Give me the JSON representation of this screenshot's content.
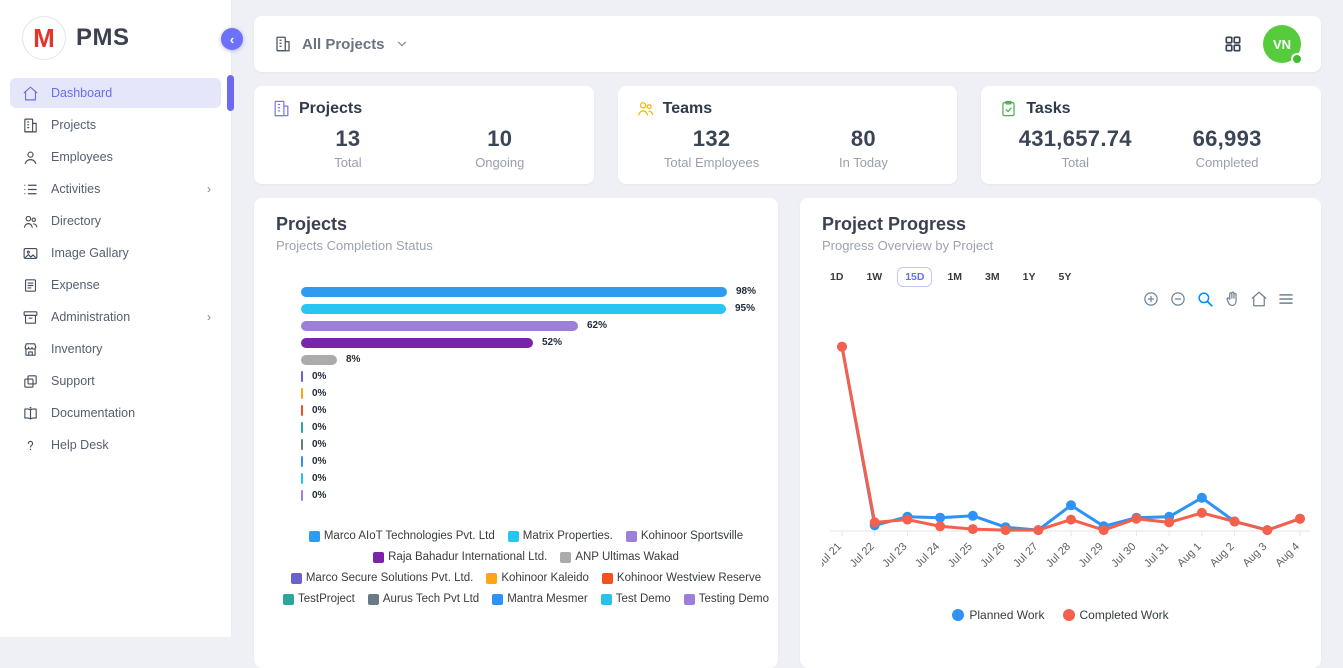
{
  "app": {
    "name": "PMS",
    "logo_letter": "M"
  },
  "sidebar": {
    "items": [
      {
        "label": "Dashboard",
        "icon": "home-icon",
        "active": true,
        "expandable": false
      },
      {
        "label": "Projects",
        "icon": "building-icon",
        "active": false,
        "expandable": false
      },
      {
        "label": "Employees",
        "icon": "person-icon",
        "active": false,
        "expandable": false
      },
      {
        "label": "Activities",
        "icon": "list-icon",
        "active": false,
        "expandable": true
      },
      {
        "label": "Directory",
        "icon": "people-icon",
        "active": false,
        "expandable": false
      },
      {
        "label": "Image Gallary",
        "icon": "image-icon",
        "active": false,
        "expandable": false
      },
      {
        "label": "Expense",
        "icon": "receipt-icon",
        "active": false,
        "expandable": false
      },
      {
        "label": "Administration",
        "icon": "archive-icon",
        "active": false,
        "expandable": true
      },
      {
        "label": "Inventory",
        "icon": "store-icon",
        "active": false,
        "expandable": false
      },
      {
        "label": "Support",
        "icon": "copy-icon",
        "active": false,
        "expandable": false
      },
      {
        "label": "Documentation",
        "icon": "book-icon",
        "active": false,
        "expandable": false
      },
      {
        "label": "Help Desk",
        "icon": "question-icon",
        "active": false,
        "expandable": false
      }
    ]
  },
  "header": {
    "project_filter_label": "All Projects",
    "avatar_initials": "VN",
    "avatar_color": "#56cb3c"
  },
  "stats": [
    {
      "title": "Projects",
      "icon": "building-icon",
      "icon_color": "#7b7be8",
      "metrics": [
        {
          "value": "13",
          "label": "Total"
        },
        {
          "value": "10",
          "label": "Ongoing"
        }
      ]
    },
    {
      "title": "Teams",
      "icon": "people-icon",
      "icon_color": "#ffb300",
      "metrics": [
        {
          "value": "132",
          "label": "Total Employees"
        },
        {
          "value": "80",
          "label": "In Today"
        }
      ]
    },
    {
      "title": "Tasks",
      "icon": "task-icon",
      "icon_color": "#4caf50",
      "metrics": [
        {
          "value": "431,657.74",
          "label": "Total"
        },
        {
          "value": "66,993",
          "label": "Completed"
        }
      ]
    }
  ],
  "projects_panel": {
    "title": "Projects",
    "subtitle": "Projects Completion Status"
  },
  "progress_panel": {
    "title": "Project Progress",
    "subtitle": "Progress Overview by Project",
    "ranges": [
      "1D",
      "1W",
      "15D",
      "1M",
      "3M",
      "1Y",
      "5Y"
    ],
    "active_range": "15D",
    "toolbar_icons": [
      "zoom-in-icon",
      "zoom-out-icon",
      "selection-zoom-icon",
      "pan-icon",
      "home-icon",
      "menu-icon"
    ],
    "toolbar_active_icon": "selection-zoom-icon"
  },
  "chart_data": [
    {
      "type": "bar",
      "orientation": "horizontal",
      "title": "Projects",
      "subtitle": "Projects Completion Status",
      "unit": "%",
      "xlim": [
        0,
        100
      ],
      "items": [
        {
          "name": "Marco AIoT Technologies Pvt. Ltd",
          "value": 98,
          "label": "98%",
          "color": "#2e9bf0"
        },
        {
          "name": "Matrix Properties.",
          "value": 95,
          "label": "95%",
          "color": "#29c5f2"
        },
        {
          "name": "Kohinoor Sportsville",
          "value": 62,
          "label": "62%",
          "color": "#9c7fd9"
        },
        {
          "name": "Raja Bahadur International Ltd.",
          "value": 52,
          "label": "52%",
          "color": "#7b24a8"
        },
        {
          "name": "ANP Ultimas Wakad",
          "value": 8,
          "label": "8%",
          "color": "#ababab"
        },
        {
          "name": "Marco Secure Solutions Pvt. Ltd.",
          "value": 0,
          "label": "0%",
          "color": "#6a62cf"
        },
        {
          "name": "Kohinoor Kaleido",
          "value": 0,
          "label": "0%",
          "color": "#ffa412"
        },
        {
          "name": "Kohinoor Westview Reserve",
          "value": 0,
          "label": "0%",
          "color": "#f4511e"
        },
        {
          "name": "TestProject",
          "value": 0,
          "label": "0%",
          "color": "#2aa79b"
        },
        {
          "name": "Aurus Tech Pvt Ltd",
          "value": 0,
          "label": "0%",
          "color": "#697a84"
        },
        {
          "name": "Mantra Mesmer",
          "value": 0,
          "label": "0%",
          "color": "#2e93f5"
        },
        {
          "name": "Test Demo",
          "value": 0,
          "label": "0%",
          "color": "#25c2ed"
        },
        {
          "name": "Testing Demo",
          "value": 0,
          "label": "0%",
          "color": "#9c7fd9"
        }
      ],
      "legend_position": "bottom"
    },
    {
      "type": "line",
      "title": "Project Progress",
      "subtitle": "Progress Overview by Project",
      "x": [
        "Jul 21",
        "Jul 22",
        "Jul 23",
        "Jul 24",
        "Jul 25",
        "Jul 26",
        "Jul 27",
        "Jul 28",
        "Jul 29",
        "Jul 30",
        "Jul 31",
        "Aug 1",
        "Aug 2",
        "Aug 3",
        "Aug 4"
      ],
      "series": [
        {
          "name": "Planned Work",
          "color": "#2e93f5",
          "values": [
            97,
            3,
            7.5,
            7,
            8,
            2,
            0.5,
            13.5,
            2.5,
            7,
            7.5,
            17.5,
            5,
            0.5,
            6.5
          ]
        },
        {
          "name": "Completed Work",
          "color": "#f4604c",
          "values": [
            97,
            4.5,
            6,
            2.5,
            1,
            0.5,
            0.5,
            6,
            0.5,
            6.5,
            4.5,
            9.5,
            5,
            0.5,
            6.5
          ]
        }
      ],
      "ylim": [
        0,
        100
      ],
      "y_axis_labels": false,
      "grid": false,
      "legend_position": "bottom"
    }
  ]
}
